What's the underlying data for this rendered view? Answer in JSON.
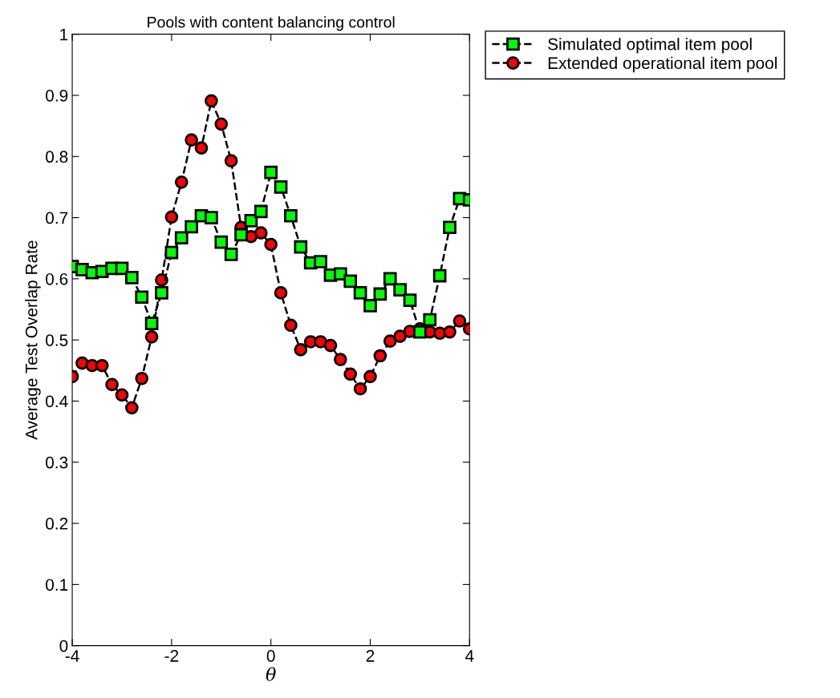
{
  "chart_data": {
    "type": "line",
    "title": "Pools with content balancing control",
    "xlabel": "θ",
    "ylabel": "Average Test Overlap Rate",
    "x": [
      -4,
      -3.8,
      -3.6,
      -3.4,
      -3.2,
      -3.0,
      -2.8,
      -2.6,
      -2.4,
      -2.2,
      -2.0,
      -1.8,
      -1.6,
      -1.4,
      -1.2,
      -1.0,
      -0.8,
      -0.6,
      -0.4,
      -0.2,
      0,
      0.2,
      0.4,
      0.6,
      0.8,
      1.0,
      1.2,
      1.4,
      1.6,
      1.8,
      2.0,
      2.2,
      2.4,
      2.6,
      2.8,
      3.0,
      3.2,
      3.4,
      3.6,
      3.8,
      4.0
    ],
    "series": [
      {
        "name": "Simulated optimal item pool",
        "color": "#00ff00",
        "marker": "square",
        "values": [
          0.62,
          0.615,
          0.61,
          0.612,
          0.617,
          0.617,
          0.602,
          0.57,
          0.527,
          0.577,
          0.643,
          0.667,
          0.685,
          0.703,
          0.7,
          0.66,
          0.64,
          0.672,
          0.695,
          0.71,
          0.774,
          0.75,
          0.703,
          0.652,
          0.626,
          0.628,
          0.606,
          0.608,
          0.596,
          0.577,
          0.556,
          0.575,
          0.6,
          0.582,
          0.565,
          0.513,
          0.533,
          0.605,
          0.684,
          0.731,
          0.729
        ]
      },
      {
        "name": "Extended operational item pool",
        "color": "#ff0000",
        "marker": "circle",
        "values": [
          0.44,
          0.462,
          0.458,
          0.458,
          0.427,
          0.41,
          0.389,
          0.437,
          0.505,
          0.598,
          0.701,
          0.758,
          0.827,
          0.814,
          0.891,
          0.853,
          0.793,
          0.684,
          0.669,
          0.675,
          0.656,
          0.577,
          0.524,
          0.484,
          0.497,
          0.497,
          0.491,
          0.468,
          0.444,
          0.42,
          0.44,
          0.474,
          0.498,
          0.506,
          0.514,
          0.518,
          0.513,
          0.511,
          0.513,
          0.531,
          0.518
        ]
      }
    ],
    "line_style": "dashed",
    "legend": "top right",
    "xlim": [
      -4,
      4
    ],
    "xticks": [
      -4,
      -2,
      0,
      2,
      4
    ],
    "ylim": [
      0,
      1
    ],
    "yticks": [
      0,
      0.1,
      0.2,
      0.3,
      0.4,
      0.5,
      0.6,
      0.7,
      0.8,
      0.9,
      1
    ]
  }
}
